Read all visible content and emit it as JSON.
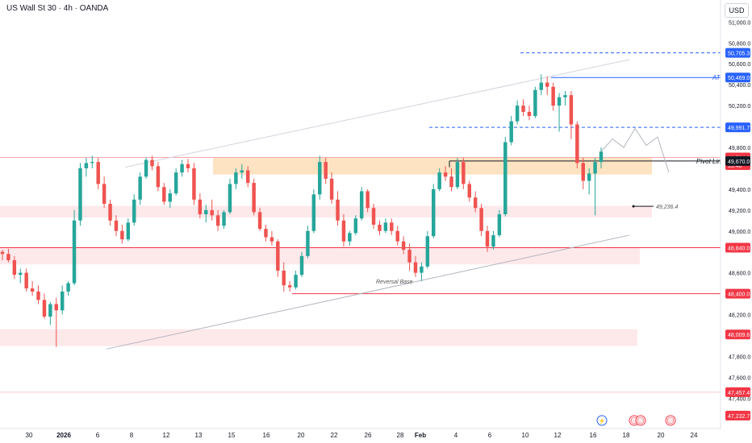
{
  "header": {
    "title": "US Wall St 30 · 4h · OANDA",
    "currency": "USD"
  },
  "colors": {
    "up": "#26a69a",
    "down": "#ef5350",
    "blue": "#2962ff",
    "red_line": "#f23645",
    "zone_orange": "#fde3c2",
    "zone_pink": "#fde8ea",
    "axis_text": "#131722",
    "trend": "#b2b5be"
  },
  "chart_data": {
    "type": "candlestick",
    "symbol": "US Wall St 30",
    "timeframe": "4h",
    "source": "OANDA",
    "ylim": [
      47140,
      51180
    ],
    "y_ticks": [
      "51,000.0",
      "50,800.0",
      "50,600.0",
      "50,400.0",
      "50,200.0",
      "49,800.0",
      "49,400.0",
      "49,200.0",
      "49,000.0",
      "48,600.0",
      "48,200.0",
      "47,800.0",
      "47,600.0",
      "47,400.0"
    ],
    "x_ticks": [
      "30",
      "2026",
      "6",
      "8",
      "12",
      "13",
      "15",
      "16",
      "20",
      "22",
      "26",
      "28",
      "Feb",
      "4",
      "6",
      "10",
      "12",
      "16",
      "18",
      "20",
      "24"
    ],
    "price_labels": [
      {
        "value": 50705.3,
        "text": "50,705.3",
        "style": "blue"
      },
      {
        "value": 50469.0,
        "text": "50,469.0",
        "style": "blue"
      },
      {
        "value": 49991.7,
        "text": "49,991.7",
        "style": "blue"
      },
      {
        "value": 49704.0,
        "text": "49,704.0",
        "style": "red"
      },
      {
        "value": 49630.0,
        "text": "19:40",
        "style": "red"
      },
      {
        "value": 49670.0,
        "text": "49,670.0",
        "style": "dark"
      },
      {
        "value": 48840.0,
        "text": "48,840.0",
        "style": "red"
      },
      {
        "value": 48400.0,
        "text": "48,400.0",
        "style": "red"
      },
      {
        "value": 48009.6,
        "text": "48,009.6",
        "style": "red"
      },
      {
        "value": 47457.4,
        "text": "47,457.4",
        "style": "red"
      },
      {
        "value": 47232.7,
        "text": "47,232.7",
        "style": "red"
      }
    ],
    "annotations": [
      {
        "text": "ATH",
        "value": 50469
      },
      {
        "text": "Pivot Line",
        "value": 49670
      },
      {
        "text": "49,236.4",
        "value": 49236.4
      },
      {
        "text": "Reversal Base",
        "value": 48520
      }
    ],
    "candles": [
      [
        48800,
        48820,
        48720,
        48780
      ],
      [
        48780,
        48830,
        48700,
        48720
      ],
      [
        48720,
        48760,
        48540,
        48580
      ],
      [
        48580,
        48640,
        48500,
        48600
      ],
      [
        48600,
        48640,
        48420,
        48450
      ],
      [
        48450,
        48520,
        48380,
        48420
      ],
      [
        48420,
        48480,
        48300,
        48340
      ],
      [
        48340,
        48400,
        48160,
        48180
      ],
      [
        48180,
        48320,
        48100,
        48300
      ],
      [
        48300,
        48360,
        47890,
        48240
      ],
      [
        48240,
        48480,
        48200,
        48420
      ],
      [
        48420,
        48520,
        48380,
        48500
      ],
      [
        48500,
        49200,
        48480,
        49100
      ],
      [
        49100,
        49650,
        49050,
        49600
      ],
      [
        49600,
        49700,
        49520,
        49650
      ],
      [
        49650,
        49720,
        49600,
        49660
      ],
      [
        49660,
        49700,
        49400,
        49450
      ],
      [
        49450,
        49520,
        49220,
        49260
      ],
      [
        49260,
        49300,
        49050,
        49100
      ],
      [
        49100,
        49150,
        48950,
        49000
      ],
      [
        49000,
        49060,
        48880,
        48920
      ],
      [
        48920,
        49120,
        48900,
        49080
      ],
      [
        49080,
        49350,
        49050,
        49300
      ],
      [
        49300,
        49560,
        49250,
        49520
      ],
      [
        49520,
        49700,
        49500,
        49680
      ],
      [
        49680,
        49720,
        49580,
        49620
      ],
      [
        49620,
        49660,
        49380,
        49420
      ],
      [
        49420,
        49460,
        49250,
        49280
      ],
      [
        49280,
        49400,
        49220,
        49360
      ],
      [
        49360,
        49600,
        49340,
        49560
      ],
      [
        49560,
        49680,
        49520,
        49640
      ],
      [
        49640,
        49690,
        49560,
        49600
      ],
      [
        49600,
        49650,
        49250,
        49300
      ],
      [
        49300,
        49360,
        49120,
        49160
      ],
      [
        49160,
        49250,
        49080,
        49200
      ],
      [
        49200,
        49300,
        49100,
        49150
      ],
      [
        49150,
        49200,
        49000,
        49050
      ],
      [
        49050,
        49200,
        49020,
        49180
      ],
      [
        49180,
        49500,
        49160,
        49450
      ],
      [
        49450,
        49600,
        49400,
        49560
      ],
      [
        49560,
        49640,
        49500,
        49580
      ],
      [
        49580,
        49620,
        49420,
        49460
      ],
      [
        49460,
        49500,
        49150,
        49180
      ],
      [
        49180,
        49220,
        49000,
        49020
      ],
      [
        49020,
        49060,
        48900,
        48940
      ],
      [
        48940,
        49000,
        48860,
        48900
      ],
      [
        48900,
        48920,
        48560,
        48620
      ],
      [
        48620,
        48700,
        48420,
        48480
      ],
      [
        48480,
        48520,
        48420,
        48460
      ],
      [
        48460,
        48620,
        48440,
        48580
      ],
      [
        48580,
        48800,
        48560,
        48760
      ],
      [
        48760,
        49050,
        48740,
        49000
      ],
      [
        49000,
        49400,
        48980,
        49350
      ],
      [
        49350,
        49720,
        49300,
        49660
      ],
      [
        49660,
        49700,
        49450,
        49500
      ],
      [
        49500,
        49560,
        49260,
        49300
      ],
      [
        49300,
        49380,
        49050,
        49100
      ],
      [
        49100,
        49160,
        48850,
        48900
      ],
      [
        48900,
        49000,
        48860,
        48980
      ],
      [
        48980,
        49150,
        48960,
        49120
      ],
      [
        49120,
        49420,
        49100,
        49380
      ],
      [
        49380,
        49400,
        49180,
        49220
      ],
      [
        49220,
        49260,
        49020,
        49060
      ],
      [
        49060,
        49100,
        48960,
        49000
      ],
      [
        49000,
        49120,
        48980,
        49080
      ],
      [
        49080,
        49120,
        48960,
        49000
      ],
      [
        49000,
        49050,
        48860,
        48900
      ],
      [
        48900,
        48950,
        48780,
        48820
      ],
      [
        48820,
        48880,
        48620,
        48700
      ],
      [
        48700,
        48760,
        48560,
        48600
      ],
      [
        48600,
        48700,
        48520,
        48660
      ],
      [
        48660,
        49000,
        48640,
        48950
      ],
      [
        48950,
        49450,
        48930,
        49400
      ],
      [
        49400,
        49600,
        49380,
        49560
      ],
      [
        49560,
        49620,
        49480,
        49520
      ],
      [
        49520,
        49600,
        49380,
        49420
      ],
      [
        49420,
        49700,
        49400,
        49660
      ],
      [
        49660,
        49700,
        49400,
        49450
      ],
      [
        49450,
        49480,
        49280,
        49320
      ],
      [
        49320,
        49380,
        49180,
        49220
      ],
      [
        49220,
        49260,
        48950,
        49000
      ],
      [
        49000,
        49050,
        48800,
        48850
      ],
      [
        48850,
        49000,
        48820,
        48960
      ],
      [
        48960,
        49200,
        48940,
        49160
      ],
      [
        49160,
        49900,
        49140,
        49850
      ],
      [
        49850,
        50100,
        49820,
        50050
      ],
      [
        50050,
        50250,
        50020,
        50200
      ],
      [
        50200,
        50260,
        50100,
        50140
      ],
      [
        50140,
        50200,
        50060,
        50100
      ],
      [
        50100,
        50380,
        50080,
        50350
      ],
      [
        50350,
        50500,
        50300,
        50420
      ],
      [
        50420,
        50480,
        50300,
        50380
      ],
      [
        50380,
        50420,
        50150,
        50200
      ],
      [
        50200,
        50320,
        49950,
        50280
      ],
      [
        50280,
        50340,
        50200,
        50300
      ],
      [
        50300,
        50340,
        49880,
        50020
      ],
      [
        50020,
        50050,
        49600,
        49650
      ],
      [
        49650,
        49700,
        49400,
        49480
      ],
      [
        49480,
        49600,
        49350,
        49550
      ],
      [
        49550,
        49700,
        49150,
        49660
      ],
      [
        49660,
        49800,
        49600,
        49760
      ]
    ],
    "projection": [
      [
        49760,
        49880
      ],
      [
        49880,
        49800
      ],
      [
        49800,
        49980
      ],
      [
        49980,
        49820
      ],
      [
        49820,
        49900
      ],
      [
        49900,
        49560
      ]
    ]
  }
}
